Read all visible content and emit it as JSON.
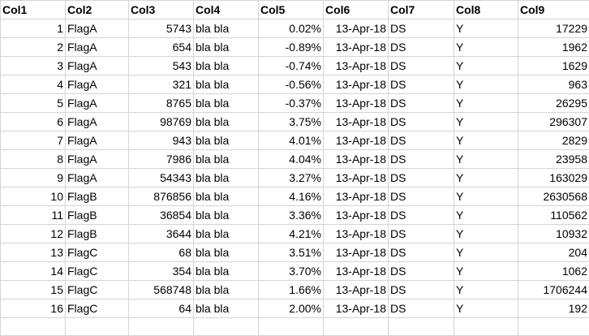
{
  "headers": [
    "Col1",
    "Col2",
    "Col3",
    "Col4",
    "Col5",
    "Col6",
    "Col7",
    "Col8",
    "Col9"
  ],
  "rows": [
    [
      "1",
      "FlagA",
      "5743",
      "bla bla",
      "0.02%",
      "13-Apr-18",
      "DS",
      "Y",
      "17229"
    ],
    [
      "2",
      "FlagA",
      "654",
      "bla bla",
      "-0.89%",
      "13-Apr-18",
      "DS",
      "Y",
      "1962"
    ],
    [
      "3",
      "FlagA",
      "543",
      "bla bla",
      "-0.74%",
      "13-Apr-18",
      "DS",
      "Y",
      "1629"
    ],
    [
      "4",
      "FlagA",
      "321",
      "bla bla",
      "-0.56%",
      "13-Apr-18",
      "DS",
      "Y",
      "963"
    ],
    [
      "5",
      "FlagA",
      "8765",
      "bla bla",
      "-0.37%",
      "13-Apr-18",
      "DS",
      "Y",
      "26295"
    ],
    [
      "6",
      "FlagA",
      "98769",
      "bla bla",
      "3.75%",
      "13-Apr-18",
      "DS",
      "Y",
      "296307"
    ],
    [
      "7",
      "FlagA",
      "943",
      "bla bla",
      "4.01%",
      "13-Apr-18",
      "DS",
      "Y",
      "2829"
    ],
    [
      "8",
      "FlagA",
      "7986",
      "bla bla",
      "4.04%",
      "13-Apr-18",
      "DS",
      "Y",
      "23958"
    ],
    [
      "9",
      "FlagA",
      "54343",
      "bla bla",
      "3.27%",
      "13-Apr-18",
      "DS",
      "Y",
      "163029"
    ],
    [
      "10",
      "FlagB",
      "876856",
      "bla bla",
      "4.16%",
      "13-Apr-18",
      "DS",
      "Y",
      "2630568"
    ],
    [
      "11",
      "FlagB",
      "36854",
      "bla bla",
      "3.36%",
      "13-Apr-18",
      "DS",
      "Y",
      "110562"
    ],
    [
      "12",
      "FlagB",
      "3644",
      "bla bla",
      "4.21%",
      "13-Apr-18",
      "DS",
      "Y",
      "10932"
    ],
    [
      "13",
      "FlagC",
      "68",
      "bla bla",
      "3.51%",
      "13-Apr-18",
      "DS",
      "Y",
      "204"
    ],
    [
      "14",
      "FlagC",
      "354",
      "bla bla",
      "3.70%",
      "13-Apr-18",
      "DS",
      "Y",
      "1062"
    ],
    [
      "15",
      "FlagC",
      "568748",
      "bla bla",
      "1.66%",
      "13-Apr-18",
      "DS",
      "Y",
      "1706244"
    ],
    [
      "16",
      "FlagC",
      "64",
      "bla bla",
      "2.00%",
      "13-Apr-18",
      "DS",
      "Y",
      "192"
    ],
    [
      "",
      "",
      "",
      "",
      "",
      "",
      "",
      "",
      ""
    ]
  ],
  "alignment": [
    "right",
    "left",
    "right",
    "left",
    "right",
    "right",
    "left",
    "left",
    "right"
  ]
}
